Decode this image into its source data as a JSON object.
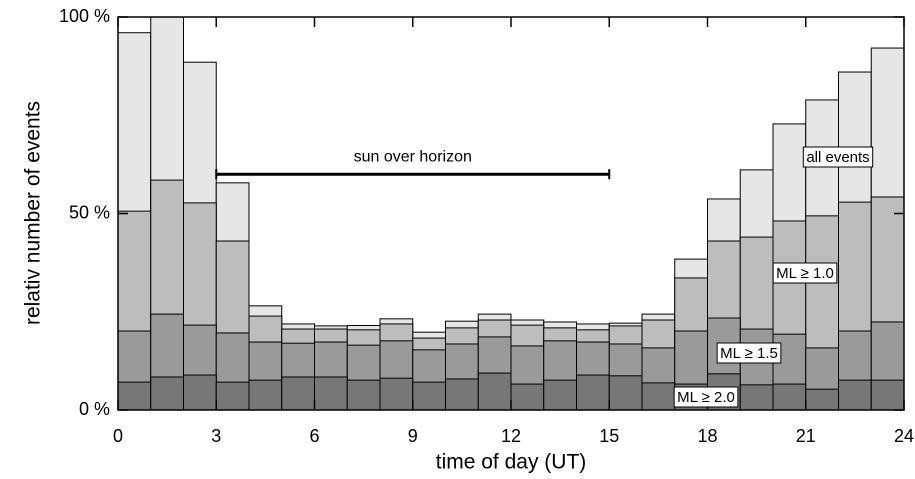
{
  "chart_data": {
    "type": "histogram",
    "xlabel": "time of day (UT)",
    "ylabel": "relativ number of events",
    "bins": [
      0,
      1,
      2,
      3,
      4,
      5,
      6,
      7,
      8,
      9,
      10,
      11,
      12,
      13,
      14,
      15,
      16,
      17,
      18,
      19,
      20,
      21,
      22,
      23,
      24
    ],
    "series": [
      {
        "name": "all events",
        "color": "#e6e6e6",
        "values": [
          96,
          100,
          88.5,
          57.8,
          26.5,
          21.9,
          21.4,
          21.5,
          23.2,
          19.8,
          22.6,
          24.4,
          22.9,
          22.4,
          21.9,
          22.1,
          24.4,
          38.4,
          53.7,
          61.1,
          72.8,
          78.9,
          86,
          92.1
        ]
      },
      {
        "name": "ML ≥ 1.0",
        "color": "#bdbdbd",
        "values": [
          50.6,
          58.5,
          52.7,
          43,
          23.9,
          20.6,
          20.6,
          20.4,
          21.9,
          18.3,
          20.9,
          22.9,
          21.6,
          20.9,
          20.4,
          21.4,
          22.9,
          33.6,
          43,
          44,
          48.1,
          49.4,
          52.9,
          54.2
        ]
      },
      {
        "name": "ML ≥ 1.5",
        "color": "#9a9a9a",
        "values": [
          20.1,
          24.4,
          21.6,
          19.6,
          17.3,
          17,
          17.3,
          16.5,
          17.6,
          15.3,
          16.8,
          18.6,
          16.3,
          17.6,
          17.3,
          16.8,
          15.8,
          20.1,
          23.4,
          20.6,
          19.3,
          15.8,
          20.1,
          22.4
        ]
      },
      {
        "name": "ML ≥ 2.0",
        "color": "#777777",
        "values": [
          7.1,
          8.4,
          8.9,
          7.1,
          7.6,
          8.4,
          8.4,
          7.6,
          8.1,
          7.1,
          7.9,
          9.4,
          6.6,
          7.6,
          8.9,
          8.7,
          6.9,
          6.6,
          9.2,
          6.4,
          6.6,
          5.3,
          7.6,
          7.6
        ]
      }
    ],
    "annotation": {
      "text": "sun over horizon",
      "x": [
        3,
        15
      ],
      "y": 60
    },
    "xlim": [
      0,
      24
    ],
    "xticks": [
      0,
      3,
      6,
      9,
      12,
      15,
      18,
      21,
      24
    ],
    "ylim": [
      0,
      100
    ],
    "yticks": [
      {
        "value": 0,
        "label": "0 %"
      },
      {
        "value": 50,
        "label": "50 %"
      },
      {
        "value": 100,
        "label": "100 %"
      }
    ]
  }
}
